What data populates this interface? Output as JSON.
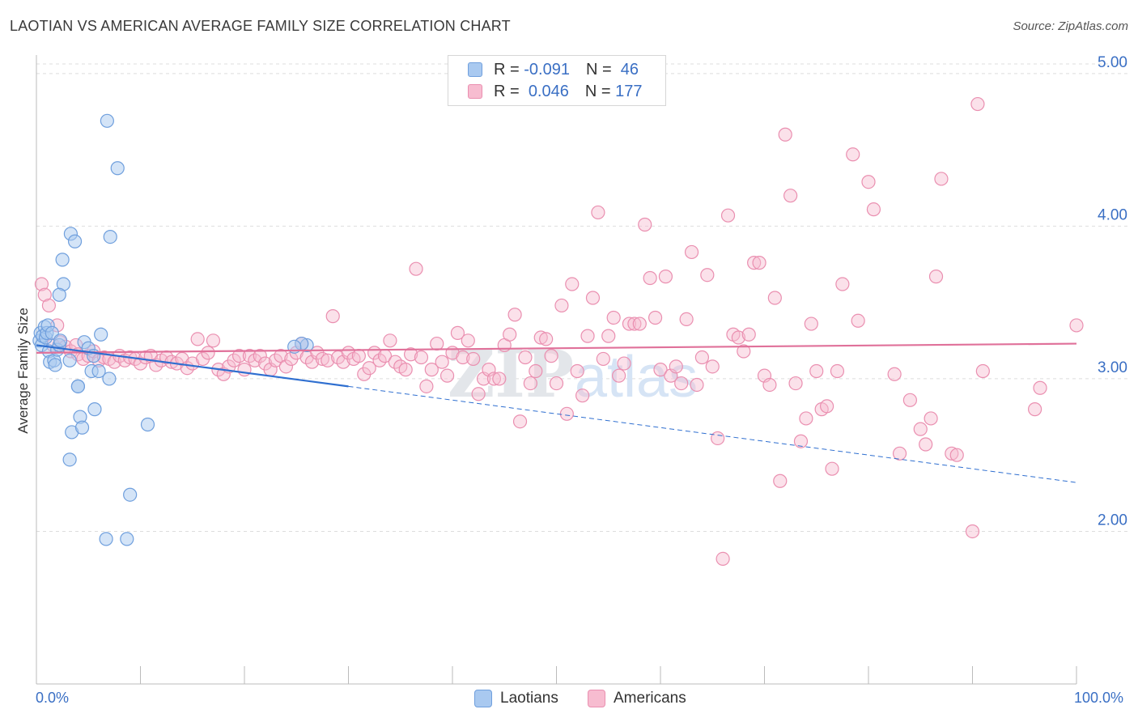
{
  "header": {
    "title": "LAOTIAN VS AMERICAN AVERAGE FAMILY SIZE CORRELATION CHART",
    "source": "Source: ZipAtlas.com"
  },
  "legend_top": {
    "rows": [
      {
        "r_label": "R =",
        "r_value": "-0.091",
        "n_label": "N =",
        "n_value": "46"
      },
      {
        "r_label": "R =",
        "r_value": "0.046",
        "n_label": "N =",
        "n_value": "177"
      }
    ]
  },
  "colors": {
    "laotians_fill": "#a9c9f0",
    "laotians_stroke": "#6f9fdd",
    "laotians_line": "#2f6fd0",
    "americans_fill": "#f7bcd0",
    "americans_stroke": "#ea8fb0",
    "americans_line": "#e0719a",
    "axis_text": "#3a6fc4",
    "grid": "#dddddd"
  },
  "chart_data": {
    "type": "scatter",
    "title": "LAOTIAN VS AMERICAN AVERAGE FAMILY SIZE CORRELATION CHART",
    "xlabel": "",
    "ylabel": "Average Family Size",
    "x_tick_labels": [
      "0.0%",
      "100.0%"
    ],
    "y_tick_labels": [
      "2.00",
      "3.00",
      "4.00",
      "5.00"
    ],
    "xlim": [
      0,
      100
    ],
    "ylim": [
      1.0,
      5.1
    ],
    "grid": "horizontal dashed",
    "legend_placement": "bottom-center",
    "series": [
      {
        "name": "Laotians",
        "r": -0.091,
        "n": 46,
        "trend": {
          "x0": 0,
          "y0": 3.22,
          "x1": 100,
          "y1": 2.32,
          "solid_until": 30
        },
        "points": [
          [
            0.3,
            3.25
          ],
          [
            0.4,
            3.3
          ],
          [
            0.5,
            3.22
          ],
          [
            0.6,
            3.28
          ],
          [
            0.8,
            3.34
          ],
          [
            0.9,
            3.27
          ],
          [
            1.0,
            3.3
          ],
          [
            1.1,
            3.35
          ],
          [
            1.2,
            3.18
          ],
          [
            1.3,
            3.11
          ],
          [
            1.5,
            3.3
          ],
          [
            1.7,
            3.12
          ],
          [
            1.8,
            3.09
          ],
          [
            2.0,
            3.19
          ],
          [
            2.2,
            3.22
          ],
          [
            2.3,
            3.25
          ],
          [
            2.5,
            3.78
          ],
          [
            2.6,
            3.62
          ],
          [
            2.2,
            3.55
          ],
          [
            3.2,
            3.12
          ],
          [
            3.2,
            2.47
          ],
          [
            3.3,
            3.95
          ],
          [
            3.7,
            3.9
          ],
          [
            3.4,
            2.65
          ],
          [
            4.0,
            2.95
          ],
          [
            4.2,
            2.75
          ],
          [
            4.4,
            2.68
          ],
          [
            4.0,
            2.95
          ],
          [
            4.6,
            3.24
          ],
          [
            5.0,
            3.2
          ],
          [
            5.5,
            3.15
          ],
          [
            5.3,
            3.05
          ],
          [
            5.6,
            2.8
          ],
          [
            6.0,
            3.05
          ],
          [
            6.2,
            3.29
          ],
          [
            6.7,
            1.95
          ],
          [
            6.8,
            4.69
          ],
          [
            7.0,
            3.0
          ],
          [
            7.1,
            3.93
          ],
          [
            7.8,
            4.38
          ],
          [
            8.7,
            1.95
          ],
          [
            9.0,
            2.24
          ],
          [
            10.7,
            2.7
          ],
          [
            26.0,
            3.22
          ],
          [
            25.5,
            3.23
          ],
          [
            24.8,
            3.21
          ]
        ]
      },
      {
        "name": "Americans",
        "r": 0.046,
        "n": 177,
        "trend": {
          "x0": 0,
          "y0": 3.17,
          "x1": 100,
          "y1": 3.23
        },
        "points": [
          [
            0.5,
            3.62
          ],
          [
            0.8,
            3.55
          ],
          [
            1.2,
            3.48
          ],
          [
            1.6,
            3.22
          ],
          [
            2.0,
            3.35
          ],
          [
            2.3,
            3.24
          ],
          [
            2.8,
            3.21
          ],
          [
            3.3,
            3.18
          ],
          [
            3.8,
            3.22
          ],
          [
            4.0,
            3.16
          ],
          [
            4.5,
            3.13
          ],
          [
            5.0,
            3.15
          ],
          [
            5.5,
            3.18
          ],
          [
            6.0,
            3.12
          ],
          [
            6.5,
            3.14
          ],
          [
            7.0,
            3.13
          ],
          [
            7.5,
            3.11
          ],
          [
            8.0,
            3.15
          ],
          [
            8.5,
            3.12
          ],
          [
            9.0,
            3.14
          ],
          [
            9.5,
            3.13
          ],
          [
            10.0,
            3.1
          ],
          [
            10.5,
            3.14
          ],
          [
            11.0,
            3.15
          ],
          [
            11.5,
            3.09
          ],
          [
            12.0,
            3.12
          ],
          [
            12.5,
            3.14
          ],
          [
            13.0,
            3.11
          ],
          [
            13.5,
            3.1
          ],
          [
            14.0,
            3.13
          ],
          [
            14.5,
            3.07
          ],
          [
            15.0,
            3.1
          ],
          [
            15.5,
            3.26
          ],
          [
            16.0,
            3.13
          ],
          [
            16.5,
            3.17
          ],
          [
            17.0,
            3.25
          ],
          [
            17.5,
            3.06
          ],
          [
            18.0,
            3.03
          ],
          [
            18.5,
            3.08
          ],
          [
            19.0,
            3.12
          ],
          [
            19.5,
            3.15
          ],
          [
            20.0,
            3.06
          ],
          [
            20.5,
            3.15
          ],
          [
            21.0,
            3.12
          ],
          [
            21.5,
            3.15
          ],
          [
            22.0,
            3.1
          ],
          [
            22.5,
            3.06
          ],
          [
            23.0,
            3.12
          ],
          [
            23.5,
            3.15
          ],
          [
            24.0,
            3.08
          ],
          [
            24.5,
            3.13
          ],
          [
            25.0,
            3.17
          ],
          [
            25.5,
            3.23
          ],
          [
            26.0,
            3.14
          ],
          [
            26.5,
            3.11
          ],
          [
            27.0,
            3.17
          ],
          [
            27.5,
            3.13
          ],
          [
            28.0,
            3.12
          ],
          [
            28.5,
            3.41
          ],
          [
            29.0,
            3.14
          ],
          [
            29.5,
            3.11
          ],
          [
            30.0,
            3.17
          ],
          [
            30.5,
            3.13
          ],
          [
            31.0,
            3.15
          ],
          [
            31.5,
            3.03
          ],
          [
            32.0,
            3.07
          ],
          [
            32.5,
            3.17
          ],
          [
            33.0,
            3.12
          ],
          [
            33.5,
            3.15
          ],
          [
            34.0,
            3.25
          ],
          [
            34.5,
            3.11
          ],
          [
            35.0,
            3.08
          ],
          [
            35.5,
            3.06
          ],
          [
            36.0,
            3.16
          ],
          [
            36.5,
            3.72
          ],
          [
            37.0,
            3.14
          ],
          [
            37.5,
            2.95
          ],
          [
            38.0,
            3.06
          ],
          [
            38.5,
            3.23
          ],
          [
            39.0,
            3.11
          ],
          [
            39.5,
            3.02
          ],
          [
            40.0,
            3.17
          ],
          [
            40.5,
            3.3
          ],
          [
            41.0,
            3.14
          ],
          [
            41.5,
            3.25
          ],
          [
            42.0,
            3.13
          ],
          [
            42.5,
            2.9
          ],
          [
            43.0,
            3.0
          ],
          [
            43.5,
            3.06
          ],
          [
            44.0,
            3.0
          ],
          [
            44.5,
            3.0
          ],
          [
            45.0,
            3.22
          ],
          [
            45.5,
            3.29
          ],
          [
            46.0,
            3.42
          ],
          [
            46.5,
            2.72
          ],
          [
            47.0,
            3.14
          ],
          [
            47.5,
            2.97
          ],
          [
            48.0,
            3.05
          ],
          [
            48.5,
            3.27
          ],
          [
            49.0,
            3.26
          ],
          [
            49.5,
            3.15
          ],
          [
            50.0,
            2.97
          ],
          [
            50.5,
            3.48
          ],
          [
            51.0,
            2.77
          ],
          [
            51.5,
            3.62
          ],
          [
            52.0,
            3.05
          ],
          [
            52.5,
            2.89
          ],
          [
            53.0,
            3.28
          ],
          [
            53.5,
            3.53
          ],
          [
            54.0,
            4.09
          ],
          [
            54.5,
            3.13
          ],
          [
            55.0,
            3.28
          ],
          [
            55.5,
            3.4
          ],
          [
            56.0,
            3.02
          ],
          [
            56.5,
            3.1
          ],
          [
            57.0,
            3.36
          ],
          [
            57.5,
            3.36
          ],
          [
            58.0,
            3.36
          ],
          [
            58.5,
            4.01
          ],
          [
            59.0,
            3.66
          ],
          [
            59.5,
            3.4
          ],
          [
            60.0,
            3.06
          ],
          [
            60.5,
            3.67
          ],
          [
            61.0,
            3.02
          ],
          [
            61.5,
            3.08
          ],
          [
            62.0,
            2.97
          ],
          [
            62.5,
            3.39
          ],
          [
            63.0,
            3.83
          ],
          [
            63.5,
            2.96
          ],
          [
            64.0,
            3.14
          ],
          [
            64.5,
            3.68
          ],
          [
            65.0,
            3.08
          ],
          [
            65.5,
            2.61
          ],
          [
            66.0,
            1.82
          ],
          [
            66.5,
            4.07
          ],
          [
            67.0,
            3.29
          ],
          [
            67.5,
            3.27
          ],
          [
            68.0,
            3.18
          ],
          [
            68.5,
            3.29
          ],
          [
            69.0,
            3.76
          ],
          [
            69.5,
            3.76
          ],
          [
            70.0,
            3.02
          ],
          [
            70.5,
            2.96
          ],
          [
            71.0,
            3.53
          ],
          [
            71.5,
            2.33
          ],
          [
            72.0,
            4.6
          ],
          [
            72.5,
            4.2
          ],
          [
            73.0,
            2.97
          ],
          [
            73.5,
            2.59
          ],
          [
            74.0,
            2.74
          ],
          [
            74.5,
            3.36
          ],
          [
            75.0,
            3.05
          ],
          [
            75.5,
            2.8
          ],
          [
            76.0,
            2.82
          ],
          [
            76.5,
            2.41
          ],
          [
            77.0,
            3.05
          ],
          [
            77.5,
            3.62
          ],
          [
            78.5,
            4.47
          ],
          [
            79.0,
            3.38
          ],
          [
            80.0,
            4.29
          ],
          [
            80.5,
            4.11
          ],
          [
            82.5,
            3.03
          ],
          [
            83.0,
            2.51
          ],
          [
            84.0,
            2.86
          ],
          [
            85.0,
            2.67
          ],
          [
            85.5,
            2.57
          ],
          [
            86.0,
            2.74
          ],
          [
            86.5,
            3.67
          ],
          [
            87.0,
            4.31
          ],
          [
            88.0,
            2.51
          ],
          [
            88.5,
            2.5
          ],
          [
            90.0,
            2.0
          ],
          [
            90.5,
            4.8
          ],
          [
            91.0,
            3.05
          ],
          [
            96.0,
            2.8
          ],
          [
            96.5,
            2.94
          ],
          [
            100.0,
            3.35
          ]
        ]
      }
    ]
  },
  "bottom_legend": {
    "items": [
      {
        "label": "Laotians"
      },
      {
        "label": "Americans"
      }
    ]
  }
}
